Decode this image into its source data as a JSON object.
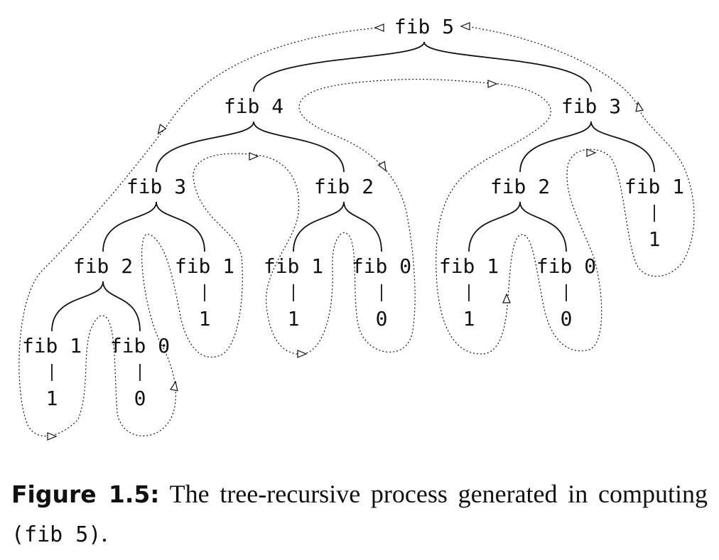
{
  "nodes": [
    {
      "id": "n1",
      "label": "fib 5"
    },
    {
      "id": "n2",
      "label": "fib 4"
    },
    {
      "id": "n3",
      "label": "fib 3"
    },
    {
      "id": "n4",
      "label": "fib 3"
    },
    {
      "id": "n5",
      "label": "fib 2"
    },
    {
      "id": "n6",
      "label": "fib 2"
    },
    {
      "id": "n7",
      "label": "fib 1"
    },
    {
      "id": "n8",
      "label": "fib 2"
    },
    {
      "id": "n9",
      "label": "fib 1"
    },
    {
      "id": "n10",
      "label": "fib 1"
    },
    {
      "id": "n11",
      "label": "fib 0"
    },
    {
      "id": "n12",
      "label": "fib 1"
    },
    {
      "id": "n13",
      "label": "fib 0"
    },
    {
      "id": "n14",
      "label": "fib 1"
    },
    {
      "id": "n15",
      "label": "fib 0"
    }
  ],
  "leaf_values": [
    {
      "of": "n7",
      "value": "1"
    },
    {
      "of": "n9",
      "value": "1"
    },
    {
      "of": "n10",
      "value": "1"
    },
    {
      "of": "n11",
      "value": "0"
    },
    {
      "of": "n12",
      "value": "1"
    },
    {
      "of": "n13",
      "value": "0"
    },
    {
      "of": "n14",
      "value": "1"
    },
    {
      "of": "n15",
      "value": "0"
    }
  ],
  "edges": [
    [
      "n1",
      "n2"
    ],
    [
      "n1",
      "n3"
    ],
    [
      "n2",
      "n4"
    ],
    [
      "n2",
      "n5"
    ],
    [
      "n3",
      "n6"
    ],
    [
      "n3",
      "n7"
    ],
    [
      "n4",
      "n8"
    ],
    [
      "n4",
      "n9"
    ],
    [
      "n5",
      "n10"
    ],
    [
      "n5",
      "n11"
    ],
    [
      "n6",
      "n12"
    ],
    [
      "n6",
      "n13"
    ],
    [
      "n8",
      "n14"
    ],
    [
      "n8",
      "n15"
    ]
  ],
  "caption": {
    "label": "Figure 1.5:",
    "text_before": "The tree-recursive process generated in computing",
    "code": "(fib 5)",
    "text_after": "."
  }
}
